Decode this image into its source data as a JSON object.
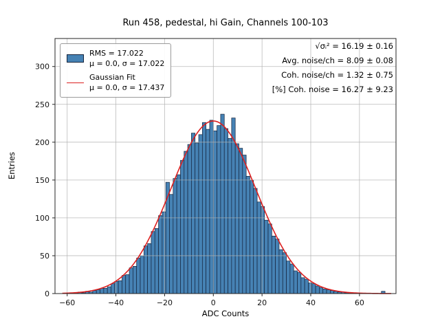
{
  "title": "Run 458, pedestal, hi Gain, Channels 100-103",
  "xlabel": "ADC Counts",
  "ylabel": "Entries",
  "legend": {
    "hist_line1": "RMS = 17.022",
    "hist_line2": "μ = 0.0, σ = 17.022",
    "fit_line1": "Gaussian Fit",
    "fit_line2": "μ = 0.0, σ = 17.437"
  },
  "annotations": {
    "line1": "√σᵢ² = 16.19 ± 0.16",
    "line2": "Avg. noise/ch = 8.09 ± 0.08",
    "line3": "Coh. noise/ch = 1.32 ± 0.75",
    "line4": "[%] Coh. noise = 16.27 ± 9.23"
  },
  "chart_data": {
    "type": "bar",
    "subtype": "histogram",
    "title": "Run 458, pedestal, hi Gain, Channels 100-103",
    "xlabel": "ADC Counts",
    "ylabel": "Entries",
    "xlim": [
      -65,
      75
    ],
    "ylim": [
      0,
      337
    ],
    "xticks": [
      -60,
      -40,
      -20,
      0,
      20,
      40,
      60
    ],
    "yticks": [
      0,
      50,
      100,
      150,
      200,
      250,
      300
    ],
    "grid": true,
    "legend_position": "upper-left",
    "bin_start": -58.5,
    "bin_width": 1.5,
    "counts": [
      1,
      1,
      2,
      1,
      3,
      2,
      4,
      5,
      7,
      7,
      9,
      13,
      16,
      17,
      24,
      25,
      34,
      36,
      47,
      50,
      63,
      66,
      82,
      86,
      103,
      108,
      147,
      131,
      152,
      157,
      176,
      188,
      197,
      212,
      199,
      210,
      226,
      217,
      229,
      215,
      222,
      237,
      218,
      205,
      232,
      198,
      192,
      183,
      155,
      150,
      139,
      121,
      115,
      97,
      92,
      76,
      72,
      58,
      54,
      43,
      39,
      30,
      28,
      21,
      19,
      14,
      13,
      10,
      8,
      6,
      5,
      4,
      3,
      2,
      2,
      1,
      1,
      1,
      0,
      0,
      0,
      0,
      0,
      0,
      0,
      3
    ],
    "hist_stats": {
      "rms": 17.022,
      "mu": 0.0,
      "sigma": 17.022
    },
    "fit": {
      "type": "gaussian",
      "mu": 0.0,
      "sigma": 17.437,
      "amplitude": 228,
      "x_start": -62,
      "x_end": 73
    },
    "derived_stats": {
      "sqrt_sigma_i_sq": "16.19 ± 0.16",
      "avg_noise_per_ch": "8.09 ± 0.08",
      "coh_noise_per_ch": "1.32 ± 0.75",
      "pct_coh_noise": "16.27 ± 9.23"
    },
    "colors": {
      "bar_fill": "#4682B4",
      "bar_edge": "#14233c",
      "fit_line": "#dc1f1f",
      "grid": "#b0b0b0",
      "spine": "#262626"
    }
  }
}
